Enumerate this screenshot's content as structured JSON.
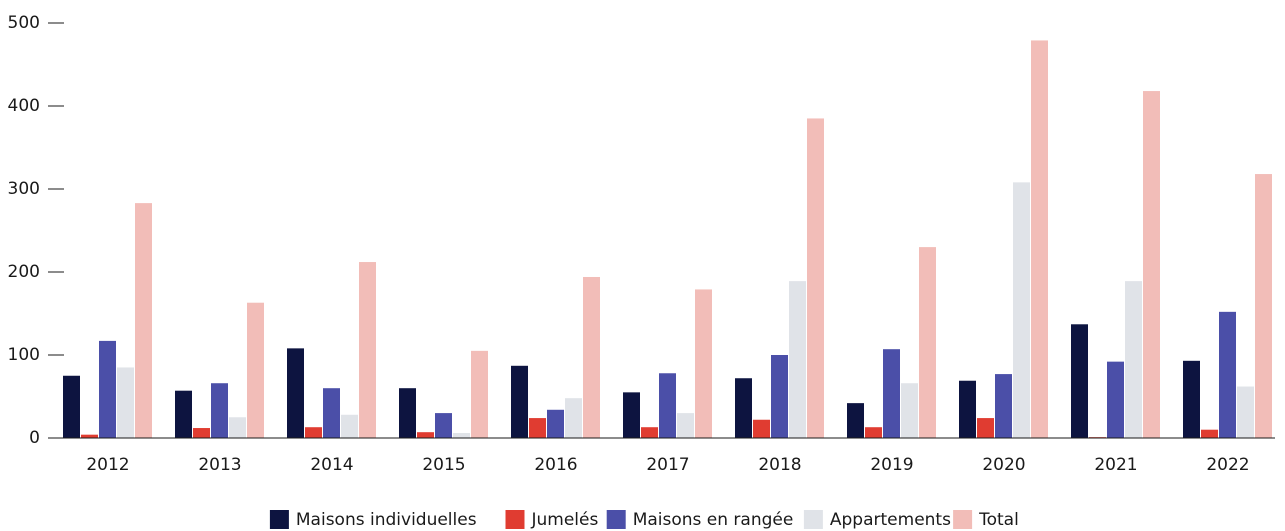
{
  "chart_data": {
    "type": "bar",
    "categories": [
      "2012",
      "2013",
      "2014",
      "2015",
      "2016",
      "2017",
      "2018",
      "2019",
      "2020",
      "2021",
      "2022"
    ],
    "series": [
      {
        "name": "Maisons individuelles",
        "color": "#0d1440",
        "values": [
          75,
          57,
          108,
          60,
          87,
          55,
          72,
          42,
          69,
          137,
          93
        ]
      },
      {
        "name": "Jumelés",
        "color": "#e03c31",
        "values": [
          4,
          12,
          13,
          7,
          24,
          13,
          22,
          13,
          24,
          1,
          10
        ]
      },
      {
        "name": "Maisons en rangée",
        "color": "#4b4fa8",
        "values": [
          117,
          66,
          60,
          30,
          34,
          78,
          100,
          107,
          77,
          92,
          152
        ]
      },
      {
        "name": "Appartements",
        "color": "#e0e3e8",
        "values": [
          85,
          25,
          28,
          6,
          48,
          30,
          189,
          66,
          308,
          189,
          62
        ]
      },
      {
        "name": "Total",
        "color": "#f2bdb8",
        "values": [
          283,
          163,
          212,
          105,
          194,
          179,
          385,
          230,
          479,
          418,
          318
        ]
      }
    ],
    "ylim": [
      0,
      500
    ],
    "yticks": [
      0,
      100,
      200,
      300,
      400,
      500
    ],
    "grid": false,
    "legend": "bottom"
  }
}
